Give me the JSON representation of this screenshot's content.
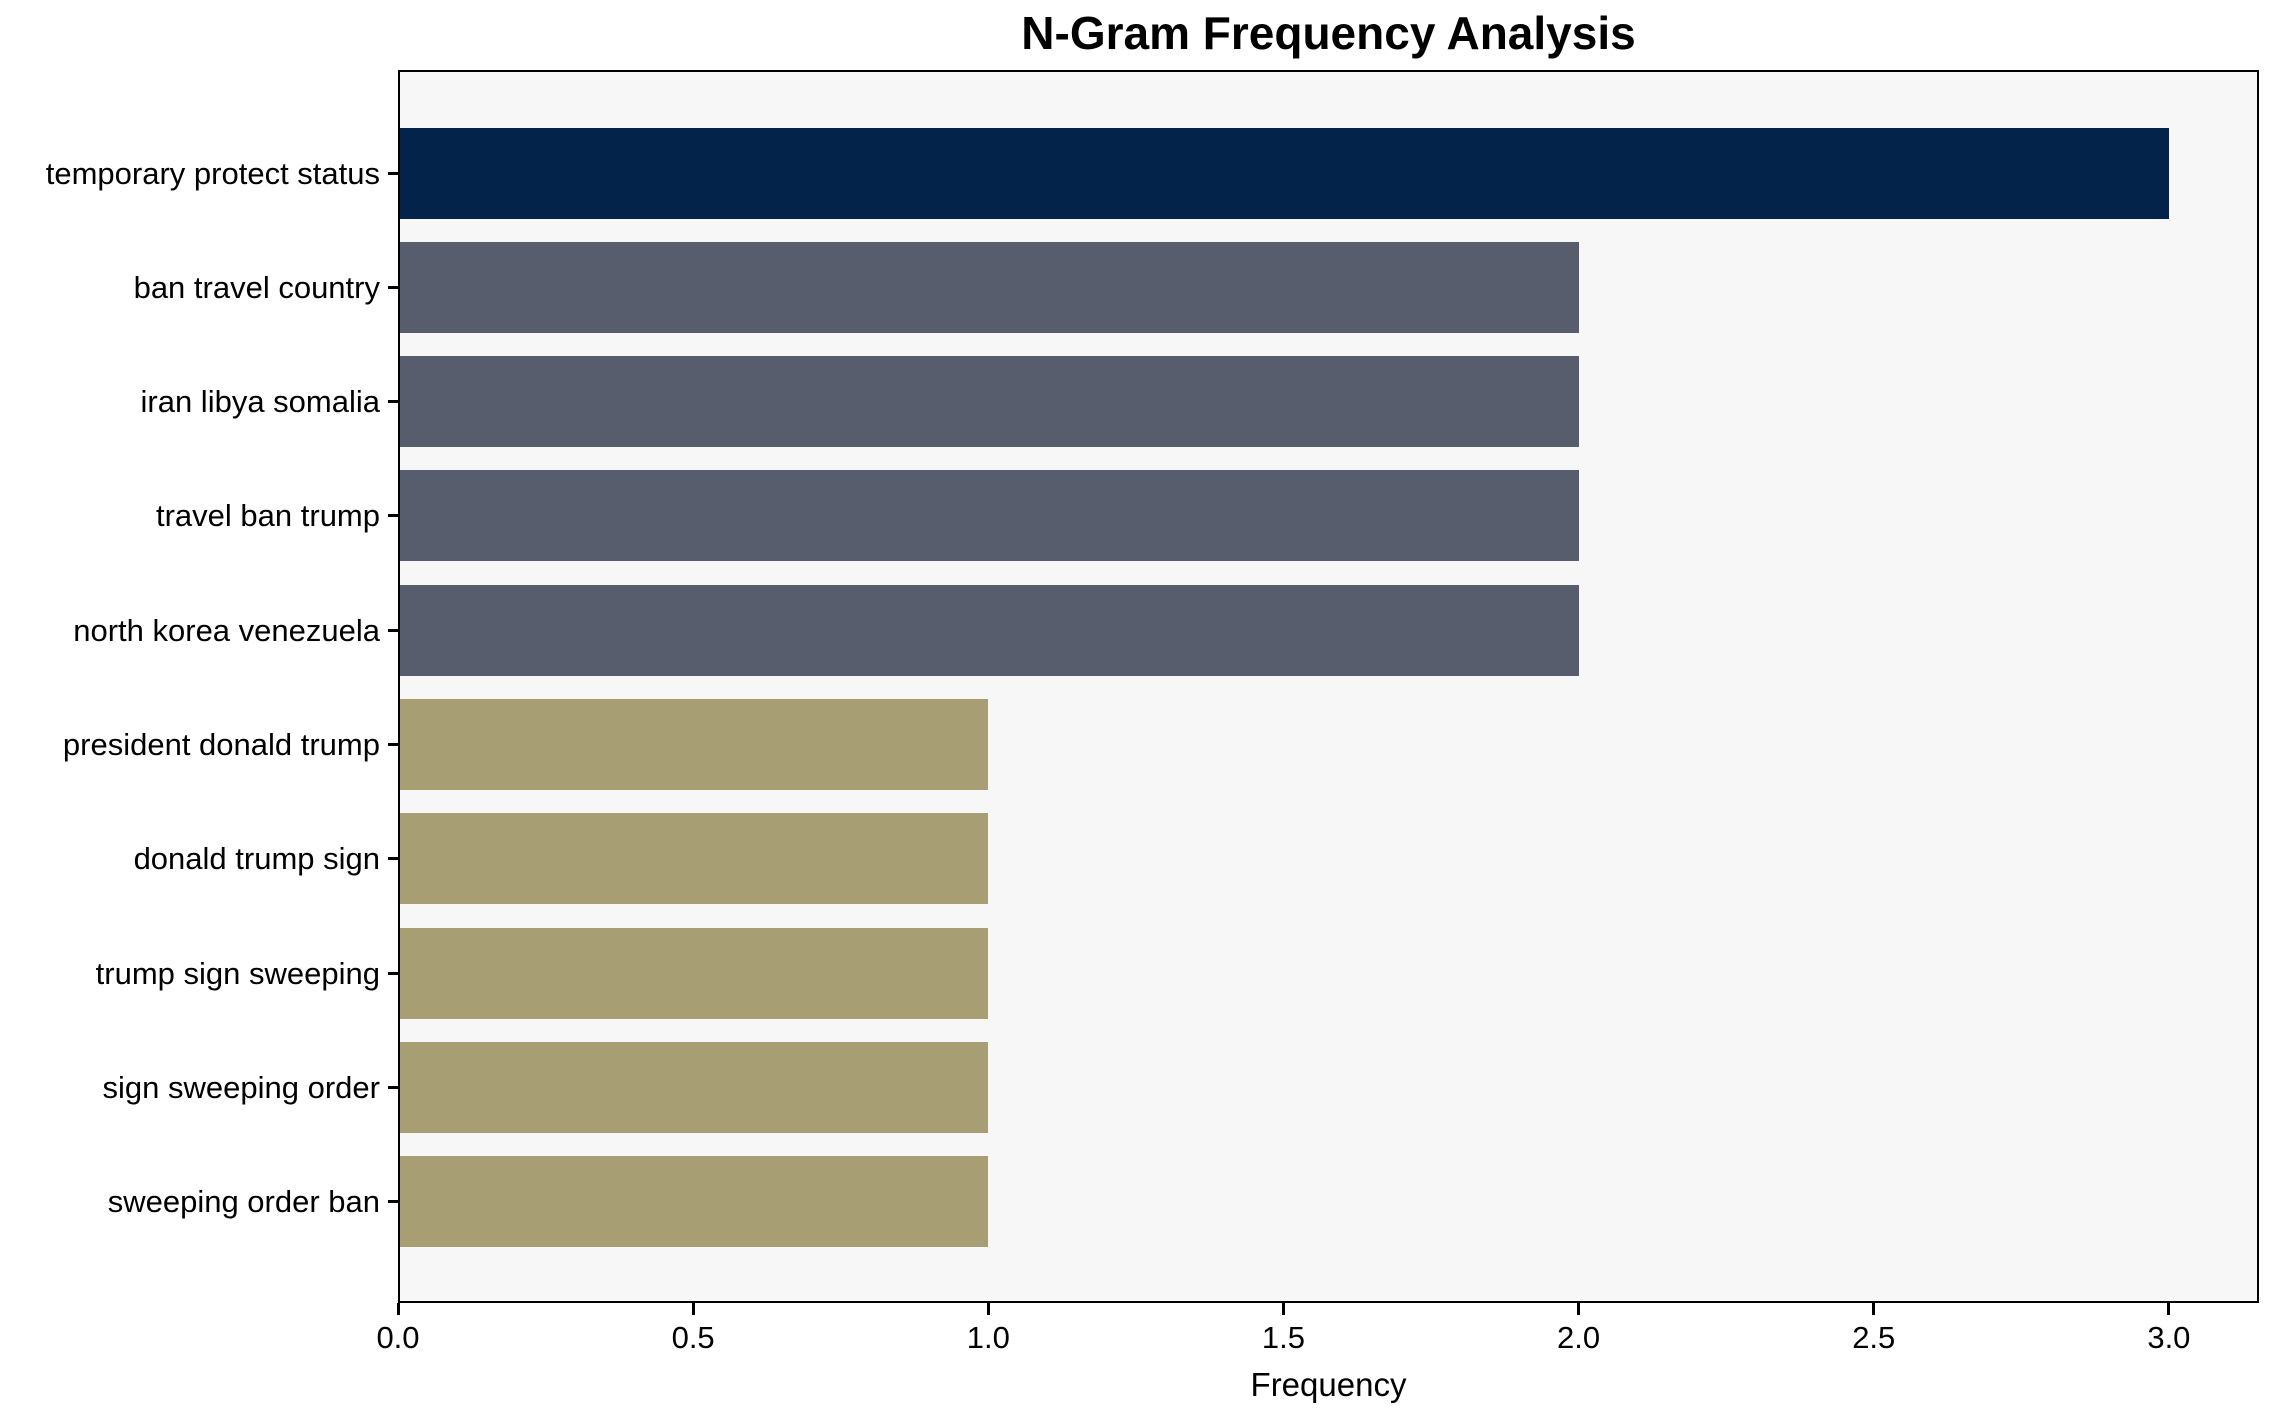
{
  "chart_data": {
    "type": "bar",
    "orientation": "horizontal",
    "title": "N-Gram Frequency Analysis",
    "xlabel": "Frequency",
    "ylabel": "",
    "categories": [
      "temporary protect status",
      "ban travel country",
      "iran libya somalia",
      "travel ban trump",
      "north korea venezuela",
      "president donald trump",
      "donald trump sign",
      "trump sign sweeping",
      "sign sweeping order",
      "sweeping order ban"
    ],
    "values": [
      3,
      2,
      2,
      2,
      2,
      1,
      1,
      1,
      1,
      1
    ],
    "bar_colors": [
      "#03234B",
      "#575D6C",
      "#575D6C",
      "#575D6C",
      "#575D6C",
      "#A79E73",
      "#A79E73",
      "#A79E73",
      "#A79E73",
      "#A79E73"
    ],
    "xticks": [
      0.0,
      0.5,
      1.0,
      1.5,
      2.0,
      2.5,
      3.0
    ],
    "xtick_labels": [
      "0.0",
      "0.5",
      "1.0",
      "1.5",
      "2.0",
      "2.5",
      "3.0"
    ],
    "xlim": [
      0,
      3.15
    ],
    "grid": false,
    "legend_position": "none",
    "plot_background": "#F7F7F7",
    "figure_background": "#FFFFFF",
    "spine_color": "#000000"
  }
}
